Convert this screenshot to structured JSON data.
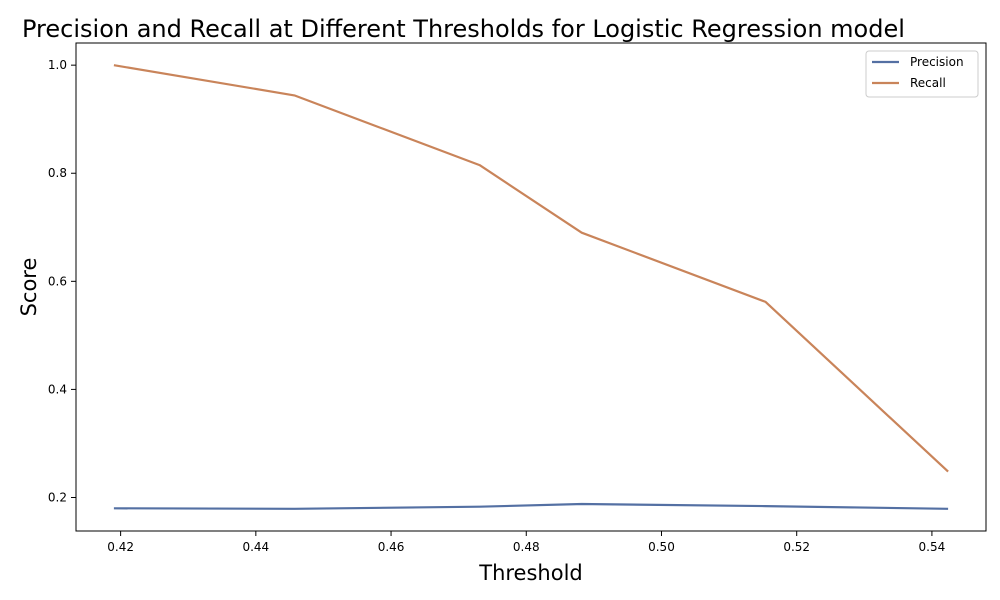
{
  "chart_data": {
    "type": "line",
    "title": "Precision and Recall at Different Thresholds for Logistic Regression  model",
    "xlabel": "Threshold",
    "ylabel": "Score",
    "x": [
      0.419,
      0.4457,
      0.4731,
      0.4882,
      0.5154,
      0.5424
    ],
    "series": [
      {
        "name": "Precision",
        "color": "#5470a3",
        "values": [
          0.18,
          0.179,
          0.183,
          0.188,
          0.184,
          0.179
        ]
      },
      {
        "name": "Recall",
        "color": "#c9845a",
        "values": [
          1.0,
          0.944,
          0.815,
          0.69,
          0.562,
          0.248
        ]
      }
    ],
    "xticks": [
      "0.42",
      "0.44",
      "0.46",
      "0.48",
      "0.50",
      "0.52",
      "0.54"
    ],
    "yticks": [
      "0.2",
      "0.4",
      "0.6",
      "0.8",
      "1.0"
    ],
    "xlim": [
      0.4134,
      0.548
    ],
    "ylim": [
      0.138,
      1.041
    ],
    "grid": false,
    "legend_position": "upper right"
  }
}
